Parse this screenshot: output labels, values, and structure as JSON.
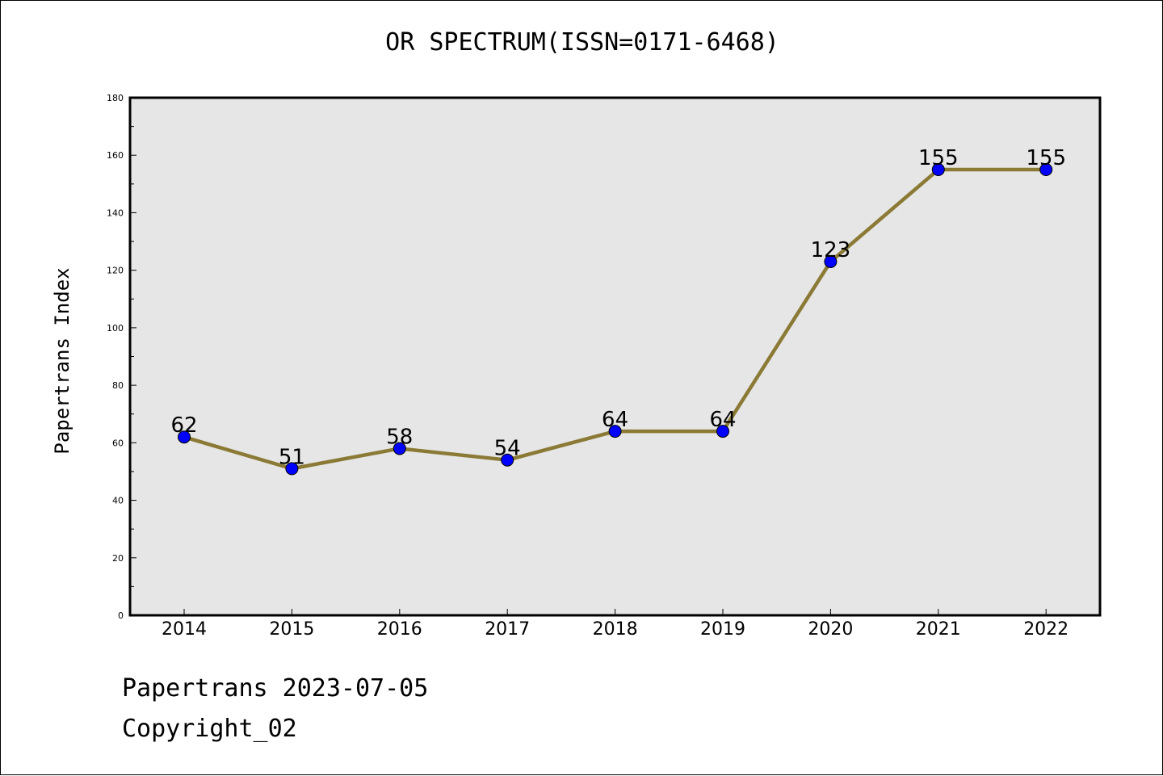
{
  "chart_data": {
    "type": "line",
    "title": "OR SPECTRUM(ISSN=0171-6468)",
    "xlabel": "",
    "ylabel": "Papertrans Index",
    "categories": [
      "2014",
      "2015",
      "2016",
      "2017",
      "2018",
      "2019",
      "2020",
      "2021",
      "2022"
    ],
    "values": [
      62,
      51,
      58,
      54,
      64,
      64,
      123,
      155,
      155
    ],
    "data_labels": [
      "62",
      "51",
      "58",
      "54",
      "64",
      "64",
      "123",
      "155",
      "155"
    ],
    "ylim": [
      0,
      180
    ],
    "yticks": [
      0,
      20,
      40,
      60,
      80,
      100,
      120,
      140,
      160,
      180
    ],
    "ytick_labels": [
      "0",
      "20",
      "40",
      "60",
      "80",
      "100",
      "120",
      "140",
      "160",
      "180"
    ],
    "grid": false,
    "colors": {
      "line": "#8b7a35",
      "marker": "#0000ff",
      "plot_bg": "#e6e6e6"
    }
  },
  "footer": {
    "line1": "Papertrans 2023-07-05",
    "line2": "Copyright_02"
  }
}
